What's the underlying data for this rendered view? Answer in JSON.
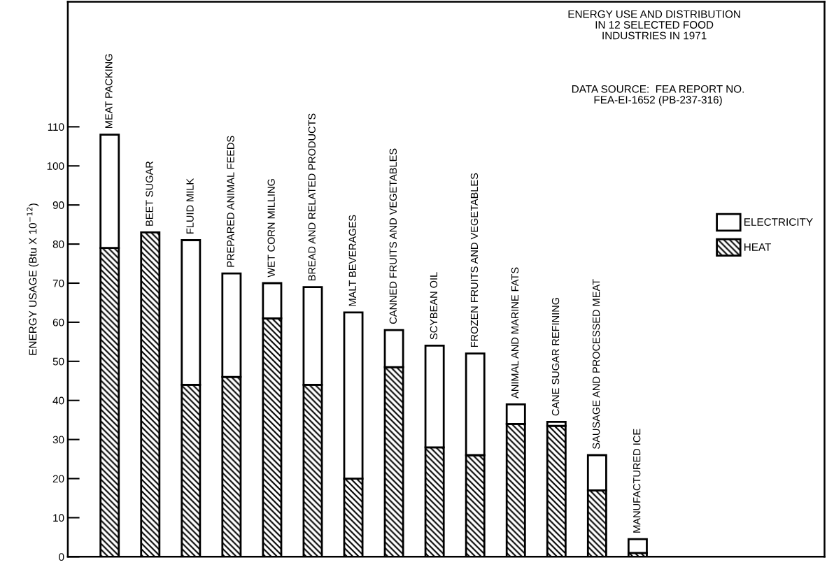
{
  "chart_data": {
    "type": "bar",
    "stacked": true,
    "title": "ENERGY USE AND DISTRIBUTION\nIN 12 SELECTED FOOD\nINDUSTRIES IN 1971",
    "annotations": [
      "DATA SOURCE:  FEA REPORT NO.\nFEA-EI-1652 (PB-237-316)"
    ],
    "ylabel": "ENERGY USAGE (Btu X 10$^{−12}$)",
    "categories": [
      "MEAT PACKING",
      "BEET SUGAR",
      "FLUID MILK",
      "PREPARED ANIMAL FEEDS",
      "WET CORN MILLING",
      "BREAD AND RELATED PRODUCTS",
      "MALT BEVERAGES",
      "CANNED FRUITS AND VEGETABLES",
      "SCYBEAN OIL",
      "FROZEN FRUITS AND VEGETABLES",
      "ANIMAL AND MARINE FATS",
      "CANE SUGAR REFINING",
      "SAUSAGE AND PROCESSED MEAT",
      "MANUFACTURED ICE"
    ],
    "series": [
      {
        "name": "HEAT",
        "color": "#000000",
        "values": [
          79,
          83,
          44,
          46,
          61,
          44,
          20,
          48.5,
          28,
          26,
          34,
          33.5,
          17,
          1
        ]
      },
      {
        "name": "ELECTRICITY",
        "color": "#ffffff",
        "values": [
          29,
          0,
          37,
          26.5,
          9,
          25,
          42.5,
          9.5,
          26,
          26,
          5,
          1,
          9,
          3.5
        ]
      }
    ],
    "ylim": [
      0,
      142
    ],
    "yticks": [
      0,
      10,
      20,
      30,
      40,
      50,
      60,
      70,
      80,
      90,
      100,
      110
    ],
    "tick_labels": "y",
    "grid": false,
    "legend": "right"
  }
}
